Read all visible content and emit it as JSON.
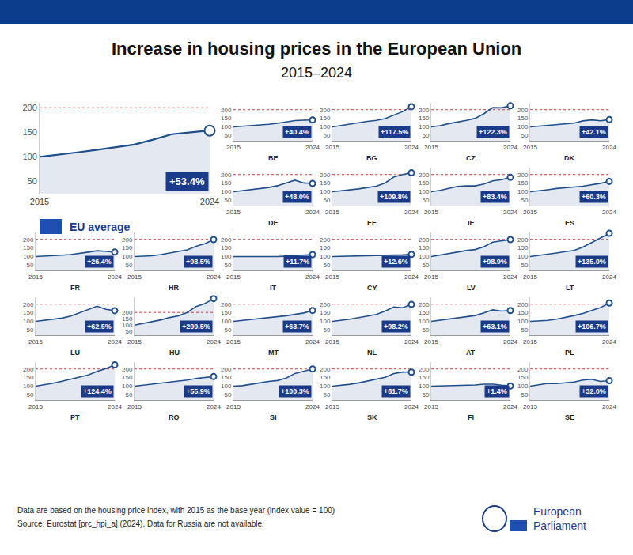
{
  "header": {
    "title": "Increase in housing prices in the European Union",
    "subtitle": "2015–2024"
  },
  "footer": {
    "notes": [
      "Data are based on the housing price index, with 2015 as the base year (index value = 100)",
      "Source: Eurostat [prc_hpi_a] (2024). Data for Russia are not available."
    ],
    "logo": "European Parliament"
  },
  "chart_data": [
    {
      "type": "line",
      "title": "EU average",
      "annotation": "+53.4%",
      "color": "#1f4e8c",
      "x": [
        2015,
        2016,
        2017,
        2018,
        2019,
        2020,
        2021,
        2022,
        2023,
        2024
      ],
      "values": [
        100,
        104,
        109,
        114,
        119,
        125,
        135,
        146,
        150,
        153.4
      ],
      "xlim": [
        2015,
        2024
      ],
      "xticks": [
        2015,
        2024
      ],
      "ylim": [
        25,
        210
      ],
      "yticks": [
        50,
        100,
        150,
        200
      ]
    },
    {
      "type": "line",
      "title": "BE",
      "annotation": "+40.4%",
      "color": "#1f4e8c",
      "x": [
        2015,
        2016,
        2017,
        2018,
        2019,
        2020,
        2021,
        2022,
        2023,
        2024
      ],
      "values": [
        100,
        103,
        107,
        110,
        115,
        121,
        129,
        137,
        139,
        140.4
      ],
      "xlim": [
        2015,
        2024
      ],
      "xticks": [
        2015,
        2024
      ],
      "ylim": [
        20,
        240
      ],
      "yticks": [
        50,
        100,
        150,
        200
      ]
    },
    {
      "type": "line",
      "title": "BG",
      "annotation": "+117.5%",
      "color": "#1f4e8c",
      "x": [
        2015,
        2016,
        2017,
        2018,
        2019,
        2020,
        2021,
        2022,
        2023,
        2024
      ],
      "values": [
        100,
        107,
        116,
        124,
        132,
        138,
        148,
        168,
        189,
        217.5
      ],
      "xlim": [
        2015,
        2024
      ],
      "xticks": [
        2015,
        2024
      ],
      "ylim": [
        20,
        240
      ],
      "yticks": [
        50,
        100,
        150,
        200
      ]
    },
    {
      "type": "line",
      "title": "CZ",
      "annotation": "+122.3%",
      "color": "#1f4e8c",
      "x": [
        2015,
        2016,
        2017,
        2018,
        2019,
        2020,
        2021,
        2022,
        2023,
        2024
      ],
      "values": [
        100,
        107,
        119,
        128,
        138,
        150,
        177,
        212,
        211,
        222.3
      ],
      "xlim": [
        2015,
        2024
      ],
      "xticks": [
        2015,
        2024
      ],
      "ylim": [
        20,
        240
      ],
      "yticks": [
        50,
        100,
        150,
        200
      ]
    },
    {
      "type": "line",
      "title": "DK",
      "annotation": "+42.1%",
      "color": "#1f4e8c",
      "x": [
        2015,
        2016,
        2017,
        2018,
        2019,
        2020,
        2021,
        2022,
        2023,
        2024
      ],
      "values": [
        100,
        105,
        109,
        114,
        117,
        122,
        135,
        141,
        136,
        142.1
      ],
      "xlim": [
        2015,
        2024
      ],
      "xticks": [
        2015,
        2024
      ],
      "ylim": [
        20,
        240
      ],
      "yticks": [
        50,
        100,
        150,
        200
      ]
    },
    {
      "type": "line",
      "title": "DE",
      "annotation": "+48.0%",
      "color": "#1f4e8c",
      "x": [
        2015,
        2016,
        2017,
        2018,
        2019,
        2020,
        2021,
        2022,
        2023,
        2024
      ],
      "values": [
        100,
        106,
        111,
        118,
        125,
        135,
        150,
        167,
        151,
        148.0
      ],
      "xlim": [
        2015,
        2024
      ],
      "xticks": [
        2015,
        2024
      ],
      "ylim": [
        20,
        240
      ],
      "yticks": [
        50,
        100,
        150,
        200
      ]
    },
    {
      "type": "line",
      "title": "EE",
      "annotation": "+109.8%",
      "color": "#1f4e8c",
      "x": [
        2015,
        2016,
        2017,
        2018,
        2019,
        2020,
        2021,
        2022,
        2023,
        2024
      ],
      "values": [
        100,
        105,
        111,
        117,
        125,
        132,
        151,
        186,
        200,
        209.8
      ],
      "xlim": [
        2015,
        2024
      ],
      "xticks": [
        2015,
        2024
      ],
      "ylim": [
        20,
        240
      ],
      "yticks": [
        50,
        100,
        150,
        200
      ]
    },
    {
      "type": "line",
      "title": "IE",
      "annotation": "+83.4%",
      "color": "#1f4e8c",
      "x": [
        2015,
        2016,
        2017,
        2018,
        2019,
        2020,
        2021,
        2022,
        2023,
        2024
      ],
      "values": [
        100,
        108,
        120,
        131,
        134,
        134,
        145,
        163,
        170,
        183.4
      ],
      "xlim": [
        2015,
        2024
      ],
      "xticks": [
        2015,
        2024
      ],
      "ylim": [
        20,
        240
      ],
      "yticks": [
        50,
        100,
        150,
        200
      ]
    },
    {
      "type": "line",
      "title": "ES",
      "annotation": "+60.3%",
      "color": "#1f4e8c",
      "x": [
        2015,
        2016,
        2017,
        2018,
        2019,
        2020,
        2021,
        2022,
        2023,
        2024
      ],
      "values": [
        100,
        105,
        112,
        119,
        125,
        128,
        132,
        139,
        149,
        160.3
      ],
      "xlim": [
        2015,
        2024
      ],
      "xticks": [
        2015,
        2024
      ],
      "ylim": [
        20,
        240
      ],
      "yticks": [
        50,
        100,
        150,
        200
      ]
    },
    {
      "type": "line",
      "title": "FR",
      "annotation": "+26.4%",
      "color": "#1f4e8c",
      "x": [
        2015,
        2016,
        2017,
        2018,
        2019,
        2020,
        2021,
        2022,
        2023,
        2024
      ],
      "values": [
        100,
        102,
        105,
        108,
        112,
        118,
        126,
        134,
        130,
        126.4
      ],
      "xlim": [
        2015,
        2024
      ],
      "xticks": [
        2015,
        2024
      ],
      "ylim": [
        20,
        240
      ],
      "yticks": [
        50,
        100,
        150,
        200
      ]
    },
    {
      "type": "line",
      "title": "HR",
      "annotation": "+98.5%",
      "color": "#1f4e8c",
      "x": [
        2015,
        2016,
        2017,
        2018,
        2019,
        2020,
        2021,
        2022,
        2023,
        2024
      ],
      "values": [
        100,
        101,
        105,
        112,
        121,
        130,
        139,
        160,
        175,
        198.5
      ],
      "xlim": [
        2015,
        2024
      ],
      "xticks": [
        2015,
        2024
      ],
      "ylim": [
        20,
        240
      ],
      "yticks": [
        50,
        100,
        150,
        200
      ]
    },
    {
      "type": "line",
      "title": "IT",
      "annotation": "+11.7%",
      "color": "#1f4e8c",
      "x": [
        2015,
        2016,
        2017,
        2018,
        2019,
        2020,
        2021,
        2022,
        2023,
        2024
      ],
      "values": [
        100,
        100,
        99,
        98,
        98,
        100,
        103,
        107,
        109,
        111.7
      ],
      "xlim": [
        2015,
        2024
      ],
      "xticks": [
        2015,
        2024
      ],
      "ylim": [
        20,
        240
      ],
      "yticks": [
        50,
        100,
        150,
        200
      ]
    },
    {
      "type": "line",
      "title": "CY",
      "annotation": "+12.6%",
      "color": "#1f4e8c",
      "x": [
        2015,
        2016,
        2017,
        2018,
        2019,
        2020,
        2021,
        2022,
        2023,
        2024
      ],
      "values": [
        100,
        101,
        103,
        104,
        107,
        107,
        107,
        109,
        110,
        112.6
      ],
      "xlim": [
        2015,
        2024
      ],
      "xticks": [
        2015,
        2024
      ],
      "ylim": [
        20,
        240
      ],
      "yticks": [
        50,
        100,
        150,
        200
      ]
    },
    {
      "type": "line",
      "title": "LV",
      "annotation": "+98.9%",
      "color": "#1f4e8c",
      "x": [
        2015,
        2016,
        2017,
        2018,
        2019,
        2020,
        2021,
        2022,
        2023,
        2024
      ],
      "values": [
        100,
        109,
        118,
        126,
        135,
        141,
        158,
        184,
        191,
        198.9
      ],
      "xlim": [
        2015,
        2024
      ],
      "xticks": [
        2015,
        2024
      ],
      "ylim": [
        20,
        240
      ],
      "yticks": [
        50,
        100,
        150,
        200
      ]
    },
    {
      "type": "line",
      "title": "LT",
      "annotation": "+135.0%",
      "color": "#1f4e8c",
      "x": [
        2015,
        2016,
        2017,
        2018,
        2019,
        2020,
        2021,
        2022,
        2023,
        2024
      ],
      "values": [
        100,
        106,
        114,
        121,
        129,
        136,
        155,
        183,
        208,
        235.0
      ],
      "xlim": [
        2015,
        2024
      ],
      "xticks": [
        2015,
        2024
      ],
      "ylim": [
        20,
        240
      ],
      "yticks": [
        50,
        100,
        150,
        200
      ]
    },
    {
      "type": "line",
      "title": "LU",
      "annotation": "+62.5%",
      "color": "#1f4e8c",
      "x": [
        2015,
        2016,
        2017,
        2018,
        2019,
        2020,
        2021,
        2022,
        2023,
        2024
      ],
      "values": [
        100,
        106,
        112,
        119,
        131,
        150,
        172,
        188,
        170,
        162.5
      ],
      "xlim": [
        2015,
        2024
      ],
      "xticks": [
        2015,
        2024
      ],
      "ylim": [
        20,
        240
      ],
      "yticks": [
        50,
        100,
        150,
        200
      ]
    },
    {
      "type": "line",
      "title": "HU",
      "annotation": "+209.5%",
      "color": "#1f4e8c",
      "x": [
        2015,
        2016,
        2017,
        2018,
        2019,
        2020,
        2021,
        2022,
        2023,
        2024
      ],
      "values": [
        100,
        113,
        124,
        141,
        160,
        173,
        200,
        247,
        270,
        309.5
      ],
      "xlim": [
        2015,
        2024
      ],
      "xticks": [
        2015,
        2024
      ],
      "ylim": [
        20,
        320
      ],
      "yticks": [
        50,
        100,
        150,
        200
      ]
    },
    {
      "type": "line",
      "title": "MT",
      "annotation": "+63.7%",
      "color": "#1f4e8c",
      "x": [
        2015,
        2016,
        2017,
        2018,
        2019,
        2020,
        2021,
        2022,
        2023,
        2024
      ],
      "values": [
        100,
        105,
        111,
        117,
        123,
        127,
        133,
        141,
        149,
        163.7
      ],
      "xlim": [
        2015,
        2024
      ],
      "xticks": [
        2015,
        2024
      ],
      "ylim": [
        20,
        240
      ],
      "yticks": [
        50,
        100,
        150,
        200
      ]
    },
    {
      "type": "line",
      "title": "NL",
      "annotation": "+98.2%",
      "color": "#1f4e8c",
      "x": [
        2015,
        2016,
        2017,
        2018,
        2019,
        2020,
        2021,
        2022,
        2023,
        2024
      ],
      "values": [
        100,
        105,
        113,
        122,
        130,
        140,
        160,
        184,
        179,
        198.2
      ],
      "xlim": [
        2015,
        2024
      ],
      "xticks": [
        2015,
        2024
      ],
      "ylim": [
        20,
        240
      ],
      "yticks": [
        50,
        100,
        150,
        200
      ]
    },
    {
      "type": "line",
      "title": "AT",
      "annotation": "+63.1%",
      "color": "#1f4e8c",
      "x": [
        2015,
        2016,
        2017,
        2018,
        2019,
        2020,
        2021,
        2022,
        2023,
        2024
      ],
      "values": [
        100,
        107,
        113,
        118,
        125,
        134,
        150,
        167,
        160,
        163.1
      ],
      "xlim": [
        2015,
        2024
      ],
      "xticks": [
        2015,
        2024
      ],
      "ylim": [
        20,
        240
      ],
      "yticks": [
        50,
        100,
        150,
        200
      ]
    },
    {
      "type": "line",
      "title": "PL",
      "annotation": "+106.7%",
      "color": "#1f4e8c",
      "x": [
        2015,
        2016,
        2017,
        2018,
        2019,
        2020,
        2021,
        2022,
        2023,
        2024
      ],
      "values": [
        100,
        102,
        106,
        113,
        122,
        134,
        146,
        164,
        180,
        206.7
      ],
      "xlim": [
        2015,
        2024
      ],
      "xticks": [
        2015,
        2024
      ],
      "ylim": [
        20,
        240
      ],
      "yticks": [
        50,
        100,
        150,
        200
      ]
    },
    {
      "type": "line",
      "title": "PT",
      "annotation": "+124.4%",
      "color": "#1f4e8c",
      "x": [
        2015,
        2016,
        2017,
        2018,
        2019,
        2020,
        2021,
        2022,
        2023,
        2024
      ],
      "values": [
        100,
        107,
        117,
        129,
        141,
        152,
        165,
        186,
        202,
        224.4
      ],
      "xlim": [
        2015,
        2024
      ],
      "xticks": [
        2015,
        2024
      ],
      "ylim": [
        20,
        240
      ],
      "yticks": [
        50,
        100,
        150,
        200
      ]
    },
    {
      "type": "line",
      "title": "RO",
      "annotation": "+55.9%",
      "color": "#1f4e8c",
      "x": [
        2015,
        2016,
        2017,
        2018,
        2019,
        2020,
        2021,
        2022,
        2023,
        2024
      ],
      "values": [
        100,
        106,
        112,
        118,
        123,
        128,
        136,
        145,
        149,
        155.9
      ],
      "xlim": [
        2015,
        2024
      ],
      "xticks": [
        2015,
        2024
      ],
      "ylim": [
        20,
        240
      ],
      "yticks": [
        50,
        100,
        150,
        200
      ]
    },
    {
      "type": "line",
      "title": "SI",
      "annotation": "+100.3%",
      "color": "#1f4e8c",
      "x": [
        2015,
        2016,
        2017,
        2018,
        2019,
        2020,
        2021,
        2022,
        2023,
        2024
      ],
      "values": [
        100,
        103,
        111,
        121,
        128,
        133,
        147,
        174,
        186,
        200.3
      ],
      "xlim": [
        2015,
        2024
      ],
      "xticks": [
        2015,
        2024
      ],
      "ylim": [
        20,
        240
      ],
      "yticks": [
        50,
        100,
        150,
        200
      ]
    },
    {
      "type": "line",
      "title": "SK",
      "annotation": "+81.7%",
      "color": "#1f4e8c",
      "x": [
        2015,
        2016,
        2017,
        2018,
        2019,
        2020,
        2021,
        2022,
        2023,
        2024
      ],
      "values": [
        100,
        105,
        111,
        119,
        129,
        142,
        152,
        174,
        182,
        181.7
      ],
      "xlim": [
        2015,
        2024
      ],
      "xticks": [
        2015,
        2024
      ],
      "ylim": [
        20,
        240
      ],
      "yticks": [
        50,
        100,
        150,
        200
      ]
    },
    {
      "type": "line",
      "title": "FI",
      "annotation": "+1.4%",
      "color": "#1f4e8c",
      "x": [
        2015,
        2016,
        2017,
        2018,
        2019,
        2020,
        2021,
        2022,
        2023,
        2024
      ],
      "values": [
        100,
        101,
        103,
        104,
        105,
        107,
        112,
        112,
        106,
        101.4
      ],
      "xlim": [
        2015,
        2024
      ],
      "xticks": [
        2015,
        2024
      ],
      "ylim": [
        20,
        240
      ],
      "yticks": [
        50,
        100,
        150,
        200
      ]
    },
    {
      "type": "line",
      "title": "SE",
      "annotation": "+32.0%",
      "color": "#1f4e8c",
      "x": [
        2015,
        2016,
        2017,
        2018,
        2019,
        2020,
        2021,
        2022,
        2023,
        2024
      ],
      "values": [
        100,
        108,
        116,
        115,
        118,
        124,
        136,
        140,
        128,
        132.0
      ],
      "xlim": [
        2015,
        2024
      ],
      "xticks": [
        2015,
        2024
      ],
      "ylim": [
        20,
        240
      ],
      "yticks": [
        50,
        100,
        150,
        200
      ]
    }
  ]
}
